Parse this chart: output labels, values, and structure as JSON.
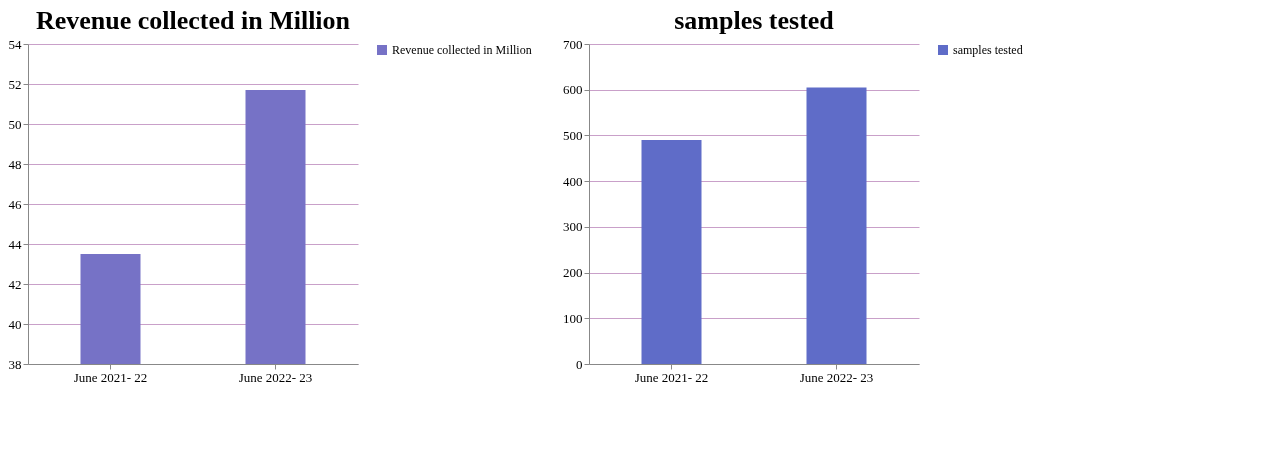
{
  "chart_data": [
    {
      "type": "bar",
      "title": "Revenue collected in Million",
      "categories": [
        "June 2021- 22",
        "June 2022- 23"
      ],
      "series": [
        {
          "name": "Revenue collected in Million",
          "color": "#7672c6",
          "values": [
            43.5,
            51.7
          ]
        }
      ],
      "ylim": [
        38,
        54
      ],
      "yticks": [
        38,
        40,
        42,
        44,
        46,
        48,
        50,
        52,
        54
      ],
      "grid": "y",
      "legend": "right"
    },
    {
      "type": "bar",
      "title": "samples tested",
      "categories": [
        "June 2021- 22",
        "June 2022- 23"
      ],
      "series": [
        {
          "name": "samples tested",
          "color": "#5f6cc8",
          "values": [
            490,
            605
          ]
        }
      ],
      "ylim": [
        0,
        700
      ],
      "yticks": [
        0,
        100,
        200,
        300,
        400,
        500,
        600,
        700
      ],
      "grid": "y",
      "legend": "right"
    }
  ]
}
